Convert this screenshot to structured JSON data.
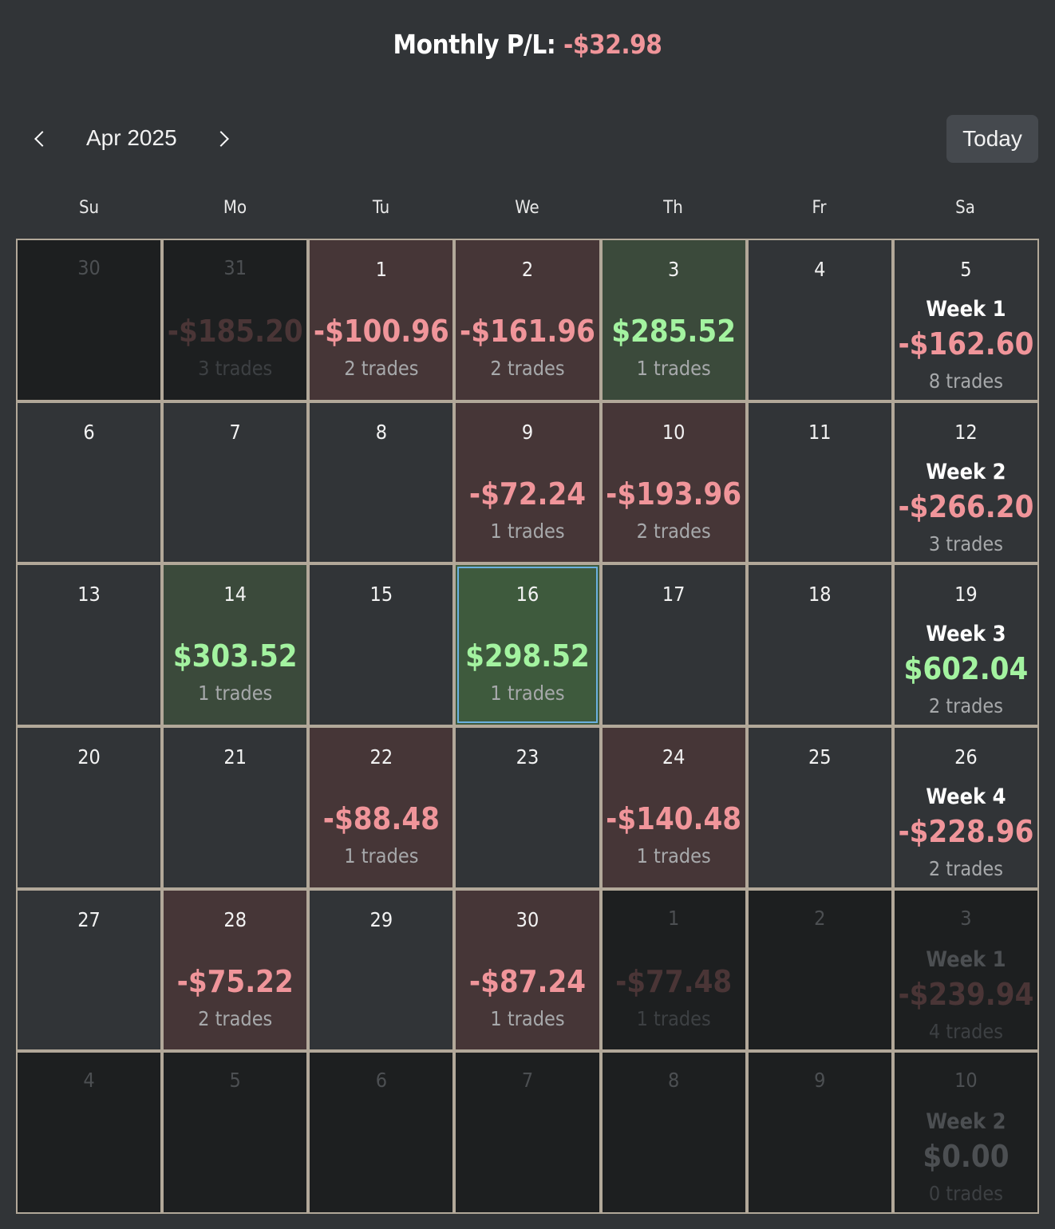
{
  "header": {
    "title_label": "Monthly P/L:",
    "title_value": "-$32.98"
  },
  "nav": {
    "month": "Apr 2025",
    "today_label": "Today",
    "prev_icon": "chevron-left-icon",
    "next_icon": "chevron-right-icon"
  },
  "weekdays": [
    "Su",
    "Mo",
    "Tu",
    "We",
    "Th",
    "Fr",
    "Sa"
  ],
  "colors": {
    "loss": "#f0959a",
    "profit": "#a3f3a0",
    "loss_bg": "#463637",
    "profit_bg": "#3b4a3b",
    "selected_border": "#6ab0df"
  },
  "weeks": [
    {
      "days": [
        {
          "day": "30",
          "outside": true
        },
        {
          "day": "31",
          "outside": true,
          "pnl": "-$185.20",
          "trades": "3 trades",
          "sign": "neg"
        },
        {
          "day": "1",
          "pnl": "-$100.96",
          "trades": "2 trades",
          "sign": "neg"
        },
        {
          "day": "2",
          "pnl": "-$161.96",
          "trades": "2 trades",
          "sign": "neg"
        },
        {
          "day": "3",
          "pnl": "$285.52",
          "trades": "1 trades",
          "sign": "pos"
        },
        {
          "day": "4"
        }
      ],
      "summary": {
        "day": "5",
        "label": "Week 1",
        "pnl": "-$162.60",
        "trades": "8 trades",
        "sign": "neg"
      }
    },
    {
      "days": [
        {
          "day": "6"
        },
        {
          "day": "7"
        },
        {
          "day": "8"
        },
        {
          "day": "9",
          "pnl": "-$72.24",
          "trades": "1 trades",
          "sign": "neg"
        },
        {
          "day": "10",
          "pnl": "-$193.96",
          "trades": "2 trades",
          "sign": "neg"
        },
        {
          "day": "11"
        }
      ],
      "summary": {
        "day": "12",
        "label": "Week 2",
        "pnl": "-$266.20",
        "trades": "3 trades",
        "sign": "neg"
      }
    },
    {
      "days": [
        {
          "day": "13"
        },
        {
          "day": "14",
          "pnl": "$303.52",
          "trades": "1 trades",
          "sign": "pos"
        },
        {
          "day": "15"
        },
        {
          "day": "16",
          "pnl": "$298.52",
          "trades": "1 trades",
          "sign": "pos",
          "selected": true
        },
        {
          "day": "17"
        },
        {
          "day": "18"
        }
      ],
      "summary": {
        "day": "19",
        "label": "Week 3",
        "pnl": "$602.04",
        "trades": "2 trades",
        "sign": "pos"
      }
    },
    {
      "days": [
        {
          "day": "20"
        },
        {
          "day": "21"
        },
        {
          "day": "22",
          "pnl": "-$88.48",
          "trades": "1 trades",
          "sign": "neg"
        },
        {
          "day": "23"
        },
        {
          "day": "24",
          "pnl": "-$140.48",
          "trades": "1 trades",
          "sign": "neg"
        },
        {
          "day": "25"
        }
      ],
      "summary": {
        "day": "26",
        "label": "Week 4",
        "pnl": "-$228.96",
        "trades": "2 trades",
        "sign": "neg"
      }
    },
    {
      "days": [
        {
          "day": "27"
        },
        {
          "day": "28",
          "pnl": "-$75.22",
          "trades": "2 trades",
          "sign": "neg"
        },
        {
          "day": "29"
        },
        {
          "day": "30",
          "pnl": "-$87.24",
          "trades": "1 trades",
          "sign": "neg"
        },
        {
          "day": "1",
          "outside": true,
          "pnl": "-$77.48",
          "trades": "1 trades",
          "sign": "neg"
        },
        {
          "day": "2",
          "outside": true
        }
      ],
      "summary": {
        "day": "3",
        "outside": true,
        "label": "Week 1",
        "pnl": "-$239.94",
        "trades": "4 trades",
        "sign": "neg"
      }
    },
    {
      "days": [
        {
          "day": "4",
          "outside": true
        },
        {
          "day": "5",
          "outside": true
        },
        {
          "day": "6",
          "outside": true
        },
        {
          "day": "7",
          "outside": true
        },
        {
          "day": "8",
          "outside": true
        },
        {
          "day": "9",
          "outside": true
        }
      ],
      "summary": {
        "day": "10",
        "outside": true,
        "label": "Week 2",
        "pnl": "$0.00",
        "trades": "0 trades",
        "sign": "zero"
      }
    }
  ]
}
